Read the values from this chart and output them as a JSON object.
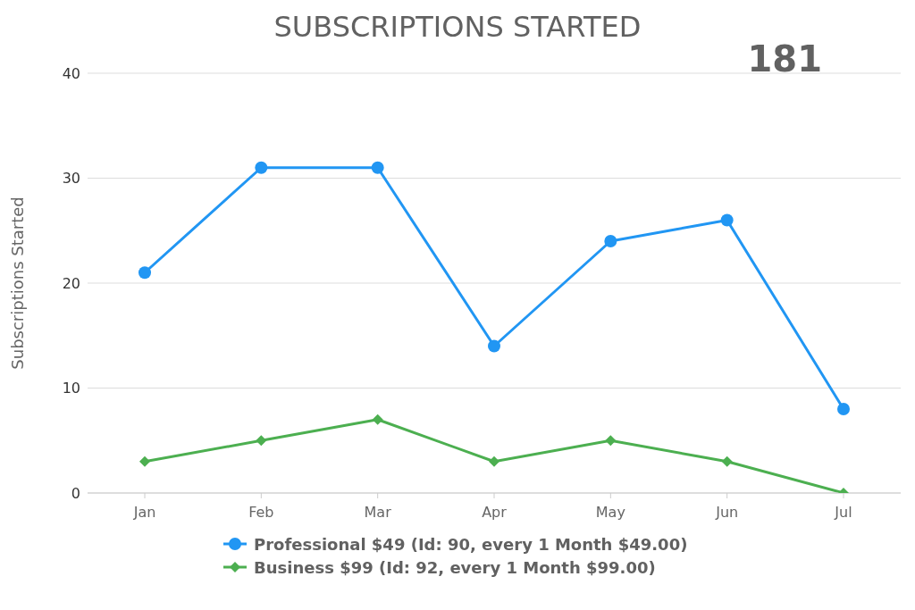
{
  "chart_data": {
    "type": "line",
    "title": "SUBSCRIPTIONS STARTED",
    "ylabel": "Subscriptions Started",
    "annotations": [
      "181"
    ],
    "categories": [
      "Jan",
      "Feb",
      "Mar",
      "Apr",
      "May",
      "Jun",
      "Jul"
    ],
    "series": [
      {
        "name": "Professional $49 (Id: 90, every 1 Month $49.00)",
        "color": "#2196f3",
        "marker": "circle",
        "values": [
          21,
          31,
          31,
          14,
          24,
          26,
          8
        ]
      },
      {
        "name": "Business $99 (Id: 92, every 1 Month $99.00)",
        "color": "#4caf50",
        "marker": "diamond",
        "values": [
          3,
          5,
          7,
          3,
          5,
          3,
          0
        ]
      }
    ],
    "ylim": [
      0,
      40
    ],
    "yticks": [
      0,
      10,
      20,
      30,
      40
    ],
    "grid": "y",
    "legend": "bottom"
  }
}
